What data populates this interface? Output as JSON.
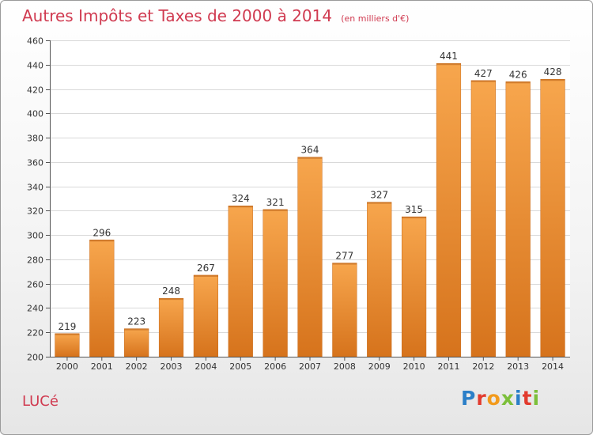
{
  "header": {
    "title": "Autres Impôts et Taxes de 2000 à 2014",
    "unit": "(en milliers d'€)"
  },
  "footer": {
    "town": "LUCé",
    "logo_letters": [
      "P",
      "r",
      "o",
      "x",
      "i",
      "t",
      "i"
    ],
    "logo_colors": [
      "#2b7fc8",
      "#e23b2e",
      "#f29a1c",
      "#7cbf3a",
      "#2b7fc8",
      "#e23b2e",
      "#7cbf3a"
    ]
  },
  "colors": {
    "bar_light": "#f7a64d",
    "bar_dark": "#d6731c",
    "text_red": "#d03a50",
    "grid": "#d9d9d9",
    "axis": "#555555"
  },
  "chart_data": {
    "type": "bar",
    "categories": [
      "2000",
      "2001",
      "2002",
      "2003",
      "2004",
      "2005",
      "2006",
      "2007",
      "2008",
      "2009",
      "2010",
      "2011",
      "2012",
      "2013",
      "2014"
    ],
    "values": [
      219,
      296,
      223,
      248,
      267,
      324,
      321,
      364,
      277,
      327,
      315,
      441,
      427,
      426,
      428
    ],
    "ylim": [
      200,
      460
    ],
    "yticks": [
      200,
      220,
      240,
      260,
      280,
      300,
      320,
      340,
      360,
      380,
      400,
      420,
      440,
      460
    ],
    "grid": true
  }
}
